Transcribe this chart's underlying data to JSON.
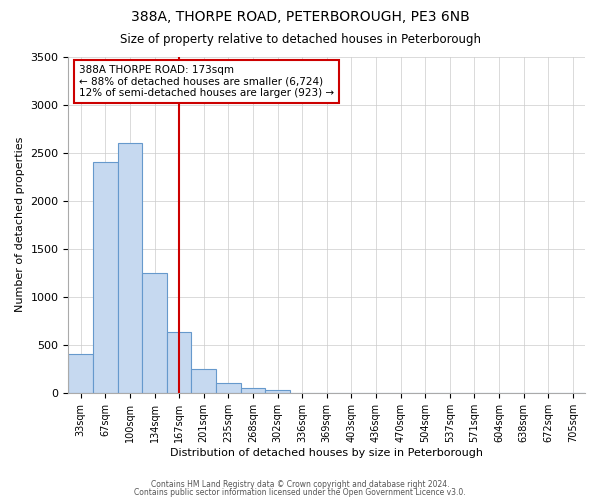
{
  "title": "388A, THORPE ROAD, PETERBOROUGH, PE3 6NB",
  "subtitle": "Size of property relative to detached houses in Peterborough",
  "xlabel": "Distribution of detached houses by size in Peterborough",
  "ylabel": "Number of detached properties",
  "bar_values": [
    400,
    2400,
    2600,
    1250,
    630,
    250,
    100,
    50,
    30,
    0,
    0,
    0,
    0,
    0,
    0,
    0,
    0,
    0,
    0,
    0,
    0
  ],
  "bar_labels": [
    "33sqm",
    "67sqm",
    "100sqm",
    "134sqm",
    "167sqm",
    "201sqm",
    "235sqm",
    "268sqm",
    "302sqm",
    "336sqm",
    "369sqm",
    "403sqm",
    "436sqm",
    "470sqm",
    "504sqm",
    "537sqm",
    "571sqm",
    "604sqm",
    "638sqm",
    "672sqm",
    "705sqm"
  ],
  "bar_color": "#c6d9f0",
  "bar_edge_color": "#6699cc",
  "vline_x": 4,
  "vline_color": "#cc0000",
  "annotation_title": "388A THORPE ROAD: 173sqm",
  "annotation_line1": "← 88% of detached houses are smaller (6,724)",
  "annotation_line2": "12% of semi-detached houses are larger (923) →",
  "annotation_box_color": "#cc0000",
  "ylim": [
    0,
    3500
  ],
  "yticks": [
    0,
    500,
    1000,
    1500,
    2000,
    2500,
    3000,
    3500
  ],
  "footer1": "Contains HM Land Registry data © Crown copyright and database right 2024.",
  "footer2": "Contains public sector information licensed under the Open Government Licence v3.0.",
  "bg_color": "#ffffff",
  "grid_color": "#cccccc"
}
